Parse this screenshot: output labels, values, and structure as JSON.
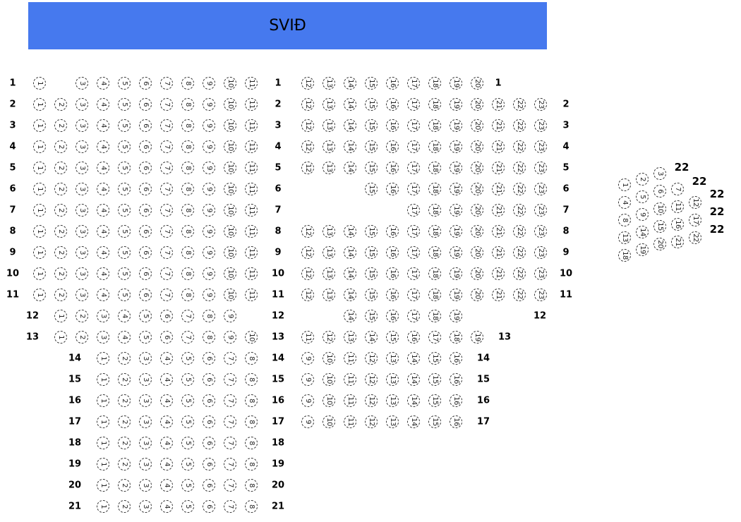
{
  "stage": {
    "label": "SVIÐ",
    "color": "#4679ee"
  },
  "rows": [
    {
      "label": "1",
      "left": [
        1,
        3,
        4,
        5,
        6,
        7,
        8,
        9,
        10,
        11
      ],
      "right": [
        12,
        13,
        14,
        15,
        16,
        17,
        18,
        19,
        20
      ]
    },
    {
      "label": "2",
      "left": [
        1,
        2,
        3,
        4,
        5,
        6,
        7,
        8,
        9,
        10,
        11
      ],
      "right": [
        12,
        13,
        14,
        15,
        16,
        17,
        18,
        19,
        20,
        21,
        22,
        23
      ]
    },
    {
      "label": "3",
      "left": [
        1,
        2,
        3,
        4,
        5,
        6,
        7,
        8,
        9,
        10,
        11
      ],
      "right": [
        12,
        13,
        14,
        15,
        16,
        17,
        18,
        19,
        20,
        21,
        22,
        23
      ]
    },
    {
      "label": "4",
      "left": [
        1,
        2,
        3,
        4,
        5,
        6,
        7,
        8,
        9,
        10,
        11
      ],
      "right": [
        12,
        13,
        14,
        15,
        16,
        17,
        18,
        19,
        20,
        21,
        22,
        23
      ]
    },
    {
      "label": "5",
      "left": [
        1,
        2,
        3,
        4,
        5,
        6,
        7,
        8,
        9,
        10,
        11
      ],
      "right": [
        12,
        13,
        14,
        15,
        16,
        17,
        18,
        19,
        20,
        21,
        22,
        23
      ]
    },
    {
      "label": "6",
      "left": [
        1,
        2,
        3,
        4,
        5,
        6,
        7,
        8,
        9,
        10,
        11
      ],
      "right": [
        15,
        16,
        17,
        18,
        19,
        20,
        21,
        22,
        23
      ]
    },
    {
      "label": "7",
      "left": [
        1,
        2,
        3,
        4,
        5,
        6,
        7,
        8,
        9,
        10,
        11
      ],
      "right": [
        17,
        18,
        19,
        20,
        21,
        22,
        23
      ]
    },
    {
      "label": "8",
      "left": [
        1,
        2,
        3,
        4,
        5,
        6,
        7,
        8,
        9,
        10,
        11
      ],
      "right": [
        12,
        13,
        14,
        15,
        16,
        17,
        18,
        19,
        20,
        21,
        22,
        23
      ]
    },
    {
      "label": "9",
      "left": [
        1,
        2,
        3,
        4,
        5,
        6,
        7,
        8,
        9,
        10,
        11
      ],
      "right": [
        12,
        13,
        14,
        15,
        16,
        17,
        18,
        19,
        20,
        21,
        22,
        23
      ]
    },
    {
      "label": "10",
      "left": [
        1,
        2,
        3,
        4,
        5,
        6,
        7,
        8,
        9,
        10,
        11
      ],
      "right": [
        12,
        13,
        14,
        15,
        16,
        17,
        18,
        19,
        20,
        21,
        22,
        23
      ]
    },
    {
      "label": "11",
      "left": [
        1,
        2,
        3,
        4,
        5,
        6,
        7,
        8,
        9,
        10,
        11
      ],
      "right": [
        12,
        13,
        14,
        15,
        16,
        17,
        18,
        19,
        20,
        21,
        22,
        23
      ]
    },
    {
      "label": "12",
      "left": [
        1,
        2,
        3,
        4,
        5,
        6,
        7,
        8,
        9
      ],
      "right": [
        14,
        15,
        16,
        17,
        18,
        19
      ]
    },
    {
      "label": "13",
      "left": [
        1,
        2,
        3,
        4,
        5,
        6,
        7,
        8,
        9,
        10
      ],
      "right": [
        11,
        12,
        13,
        14,
        15,
        16,
        17,
        18,
        19
      ]
    },
    {
      "label": "14",
      "left": [
        1,
        2,
        3,
        4,
        5,
        6,
        7,
        8
      ],
      "right": [
        9,
        10,
        11,
        12,
        13,
        14,
        15,
        16
      ]
    },
    {
      "label": "15",
      "left": [
        1,
        2,
        3,
        4,
        5,
        6,
        7,
        8
      ],
      "right": [
        9,
        10,
        11,
        12,
        13,
        14,
        15,
        16
      ]
    },
    {
      "label": "16",
      "left": [
        1,
        2,
        3,
        4,
        5,
        6,
        7,
        8
      ],
      "right": [
        9,
        10,
        11,
        12,
        13,
        14,
        15,
        16
      ]
    },
    {
      "label": "17",
      "left": [
        1,
        2,
        3,
        4,
        5,
        6,
        7,
        8
      ],
      "right": [
        9,
        10,
        11,
        12,
        13,
        14,
        15,
        16
      ]
    },
    {
      "label": "18",
      "left": [
        1,
        2,
        3,
        4,
        5,
        6,
        7,
        8
      ],
      "right": []
    },
    {
      "label": "19",
      "left": [
        1,
        2,
        3,
        4,
        5,
        6,
        7,
        8
      ],
      "right": []
    },
    {
      "label": "20",
      "left": [
        1,
        2,
        3,
        4,
        5,
        6,
        7,
        8
      ],
      "right": []
    },
    {
      "label": "21",
      "left": [
        1,
        2,
        3,
        4,
        5,
        6,
        7,
        8
      ],
      "right": []
    }
  ],
  "side_section": {
    "row_labels": [
      "22",
      "22",
      "22",
      "22",
      "22"
    ],
    "columns": [
      [
        1,
        4,
        8,
        13,
        18
      ],
      [
        2,
        5,
        9,
        14,
        19
      ],
      [
        3,
        6,
        10,
        15,
        20
      ],
      [
        7,
        11,
        16,
        21
      ],
      [
        12,
        17,
        22
      ]
    ]
  }
}
